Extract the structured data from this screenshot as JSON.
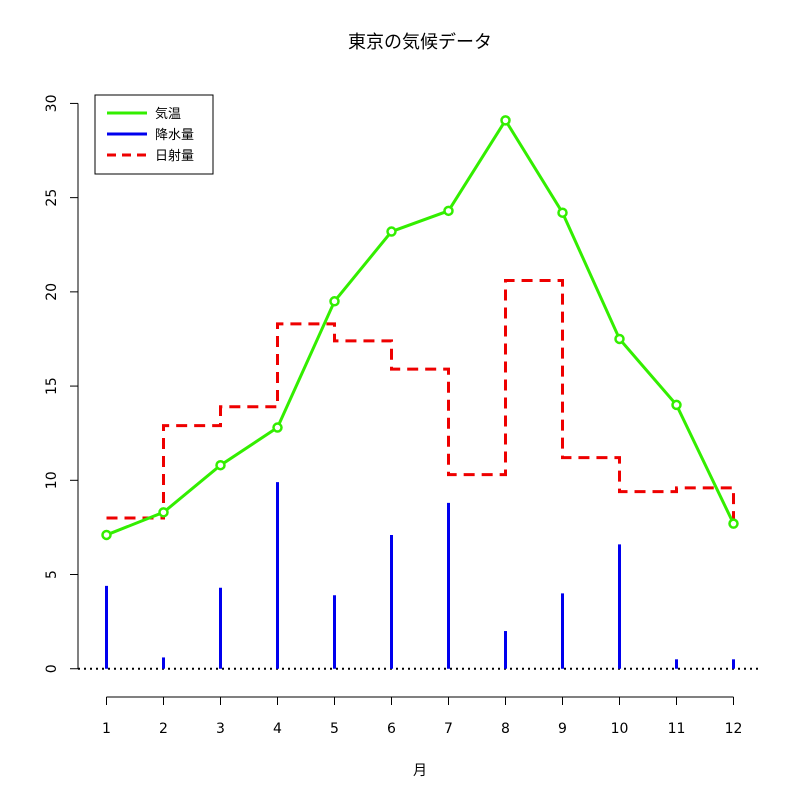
{
  "chart_data": {
    "type": "line",
    "title": "東京の気候データ",
    "xlabel": "月",
    "ylabel": "",
    "x": [
      1,
      2,
      3,
      4,
      5,
      6,
      7,
      8,
      9,
      10,
      11,
      12
    ],
    "x_tick_labels": [
      "1",
      "2",
      "3",
      "4",
      "5",
      "6",
      "7",
      "8",
      "9",
      "10",
      "11",
      "12"
    ],
    "xlim": [
      0.5,
      12.5
    ],
    "ylim": [
      -1.5,
      30.5
    ],
    "y_ticks": [
      0,
      5,
      10,
      15,
      20,
      25,
      30
    ],
    "y_tick_labels": [
      "0",
      "5",
      "10",
      "15",
      "20",
      "25",
      "30"
    ],
    "grid": false,
    "legend_position": "top-left",
    "baseline": {
      "y": 0,
      "style": "dotted",
      "color": "#000000"
    },
    "series": [
      {
        "name": "気温",
        "render": "line-points",
        "color": "#33ee00",
        "values": [
          7.1,
          8.3,
          10.8,
          12.8,
          19.5,
          23.2,
          24.3,
          29.1,
          24.2,
          17.5,
          14.0,
          7.7
        ]
      },
      {
        "name": "降水量",
        "render": "vertical-lines",
        "color": "#0000ee",
        "values": [
          4.4,
          0.6,
          4.3,
          9.9,
          3.9,
          7.1,
          8.8,
          2.0,
          4.0,
          6.6,
          0.5,
          0.5
        ]
      },
      {
        "name": "日射量",
        "render": "step-dashed",
        "color": "#ee0000",
        "values": [
          8.0,
          12.9,
          13.9,
          18.3,
          17.4,
          15.9,
          10.3,
          20.6,
          11.2,
          9.4,
          9.6,
          7.7
        ]
      }
    ]
  }
}
